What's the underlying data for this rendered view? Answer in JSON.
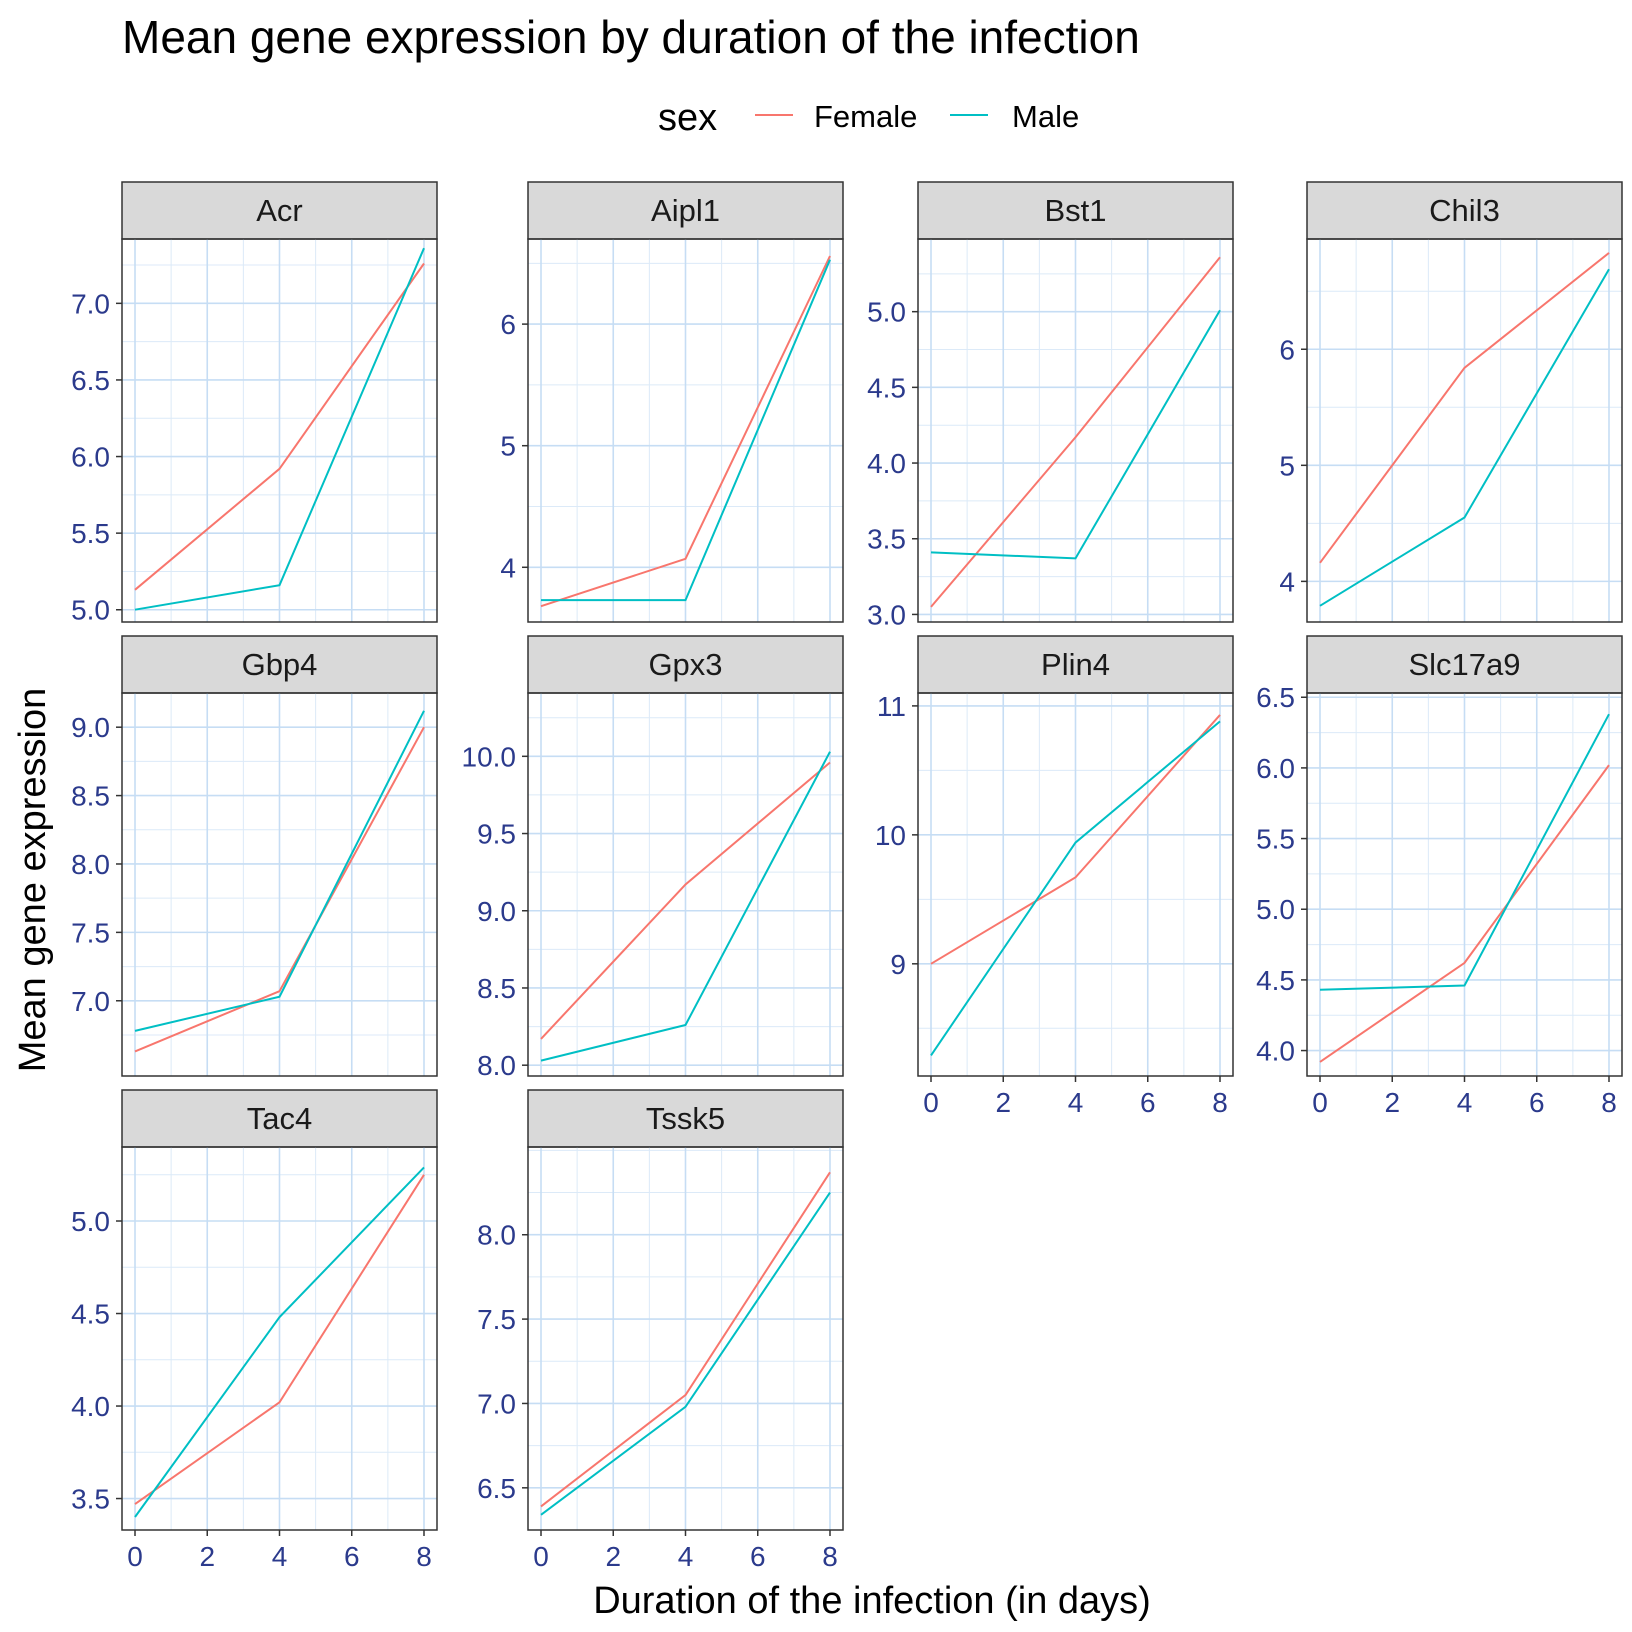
{
  "chart_data": {
    "type": "line",
    "title": "Mean gene expression by duration of the infection",
    "xlabel": "Duration of the infection (in days)",
    "ylabel": "Mean gene expression",
    "legend": {
      "title": "sex",
      "position": "top",
      "entries": [
        {
          "name": "Female",
          "color": "#F8766D"
        },
        {
          "name": "Male",
          "color": "#00BFC4"
        }
      ]
    },
    "grid": true,
    "x_ticks": [
      0,
      2,
      4,
      6,
      8
    ],
    "x_tick_labels": [
      "0",
      "2",
      "4",
      "6",
      "8"
    ],
    "x": [
      0,
      4,
      8
    ],
    "colors": {
      "female": "#F8766D",
      "male": "#00BFC4",
      "tick_label": "#2B3A8C",
      "strip_bg": "#D9D9D9",
      "grid_major": "#C6DDF4",
      "grid_minor": "#DCEAF8"
    },
    "panels": [
      {
        "name": "Acr",
        "ylim": [
          4.92,
          7.42
        ],
        "yticks": [
          5.0,
          5.5,
          6.0,
          6.5,
          7.0
        ],
        "ytick_labels": [
          "5.0",
          "5.5",
          "6.0",
          "6.5",
          "7.0"
        ],
        "series": [
          {
            "name": "Female",
            "values": [
              5.13,
              5.92,
              7.26
            ]
          },
          {
            "name": "Male",
            "values": [
              5.0,
              5.16,
              7.36
            ]
          }
        ]
      },
      {
        "name": "Aipl1",
        "ylim": [
          3.55,
          6.7
        ],
        "yticks": [
          4,
          5,
          6
        ],
        "ytick_labels": [
          "4",
          "5",
          "6"
        ],
        "series": [
          {
            "name": "Female",
            "values": [
              3.68,
              4.07,
              6.56
            ]
          },
          {
            "name": "Male",
            "values": [
              3.73,
              3.73,
              6.53
            ]
          }
        ]
      },
      {
        "name": "Bst1",
        "ylim": [
          2.95,
          5.48
        ],
        "yticks": [
          3.0,
          3.5,
          4.0,
          4.5,
          5.0
        ],
        "ytick_labels": [
          "3.0",
          "3.5",
          "4.0",
          "4.5",
          "5.0"
        ],
        "series": [
          {
            "name": "Female",
            "values": [
              3.05,
              4.17,
              5.36
            ]
          },
          {
            "name": "Male",
            "values": [
              3.41,
              3.37,
              5.01
            ]
          }
        ]
      },
      {
        "name": "Chil3",
        "ylim": [
          3.65,
          6.95
        ],
        "yticks": [
          4,
          5,
          6
        ],
        "ytick_labels": [
          "4",
          "5",
          "6"
        ],
        "series": [
          {
            "name": "Female",
            "values": [
              4.16,
              5.84,
              6.83
            ]
          },
          {
            "name": "Male",
            "values": [
              3.79,
              4.55,
              6.69
            ]
          }
        ]
      },
      {
        "name": "Gbp4",
        "ylim": [
          6.45,
          9.25
        ],
        "yticks": [
          7.0,
          7.5,
          8.0,
          8.5,
          9.0
        ],
        "ytick_labels": [
          "7.0",
          "7.5",
          "8.0",
          "8.5",
          "9.0"
        ],
        "series": [
          {
            "name": "Female",
            "values": [
              6.63,
              7.07,
              9.0
            ]
          },
          {
            "name": "Male",
            "values": [
              6.78,
              7.03,
              9.12
            ]
          }
        ]
      },
      {
        "name": "Gpx3",
        "ylim": [
          7.93,
          10.41
        ],
        "yticks": [
          8.0,
          8.5,
          9.0,
          9.5,
          10.0
        ],
        "ytick_labels": [
          "8.0",
          "8.5",
          "9.0",
          "9.5",
          "10.0"
        ],
        "series": [
          {
            "name": "Female",
            "values": [
              8.17,
              9.17,
              9.96
            ]
          },
          {
            "name": "Male",
            "values": [
              8.03,
              8.26,
              10.03
            ]
          }
        ]
      },
      {
        "name": "Plin4",
        "ylim": [
          8.13,
          11.1
        ],
        "yticks": [
          9,
          10,
          11
        ],
        "ytick_labels": [
          "9",
          "10",
          "11"
        ],
        "series": [
          {
            "name": "Female",
            "values": [
              9.0,
              9.67,
              10.93
            ]
          },
          {
            "name": "Male",
            "values": [
              8.29,
              9.94,
              10.88
            ]
          }
        ]
      },
      {
        "name": "Slc17a9",
        "ylim": [
          3.82,
          6.53
        ],
        "yticks": [
          4.0,
          4.5,
          5.0,
          5.5,
          6.0,
          6.5
        ],
        "ytick_labels": [
          "4.0",
          "4.5",
          "5.0",
          "5.5",
          "6.0",
          "6.5"
        ],
        "series": [
          {
            "name": "Female",
            "values": [
              3.92,
              4.62,
              6.02
            ]
          },
          {
            "name": "Male",
            "values": [
              4.43,
              4.46,
              6.38
            ]
          }
        ]
      },
      {
        "name": "Tac4",
        "ylim": [
          3.33,
          5.4
        ],
        "yticks": [
          3.5,
          4.0,
          4.5,
          5.0
        ],
        "ytick_labels": [
          "3.5",
          "4.0",
          "4.5",
          "5.0"
        ],
        "series": [
          {
            "name": "Female",
            "values": [
              3.47,
              4.02,
              5.25
            ]
          },
          {
            "name": "Male",
            "values": [
              3.4,
              4.48,
              5.29
            ]
          }
        ]
      },
      {
        "name": "Tssk5",
        "ylim": [
          6.25,
          8.52
        ],
        "yticks": [
          6.5,
          7.0,
          7.5,
          8.0
        ],
        "ytick_labels": [
          "6.5",
          "7.0",
          "7.5",
          "8.0"
        ],
        "series": [
          {
            "name": "Female",
            "values": [
              6.39,
              7.05,
              8.37
            ]
          },
          {
            "name": "Male",
            "values": [
              6.34,
              6.98,
              8.25
            ]
          }
        ]
      }
    ]
  }
}
